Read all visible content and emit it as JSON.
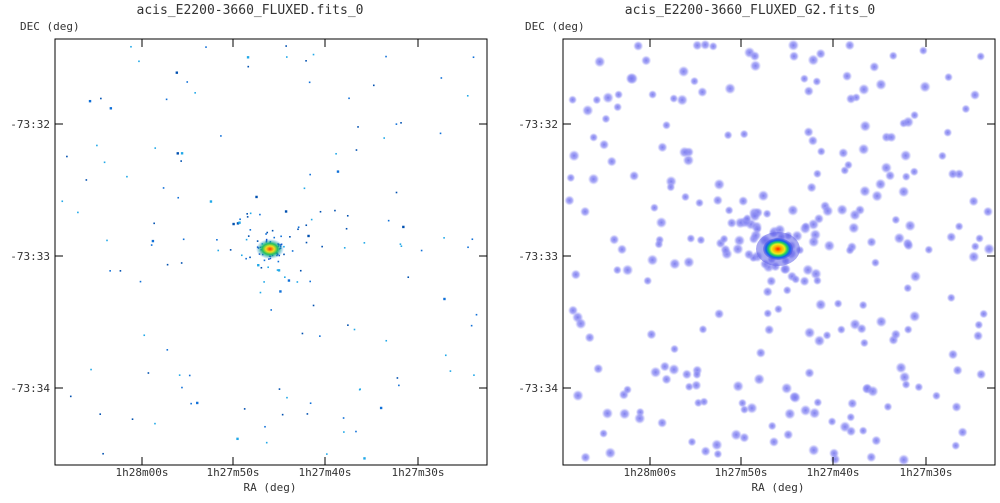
{
  "chart_data": [
    {
      "type": "scatter",
      "title": "acis_E2200-3660_FLUXED.fits_0",
      "xlabel": "RA (deg)",
      "ylabel": "DEC (deg)",
      "x_tick_labels": [
        "1h28m00s",
        "1h27m50s",
        "1h27m40s",
        "1h27m30s"
      ],
      "y_tick_labels": [
        "-73:32",
        "-73:33",
        "-73:34"
      ],
      "rendering": "raw event counts, sparse single-pixel dots",
      "source": {
        "ra": "1h27m47s",
        "dec": "-73:32:56",
        "peak_color": "#ff2000"
      },
      "dot_colors": [
        "#1070d8",
        "#20a8e8",
        "#0050b0"
      ],
      "grid": false
    },
    {
      "type": "scatter",
      "title": "acis_E2200-3660_FLUXED_G2.fits_0",
      "xlabel": "RA (deg)",
      "ylabel": "DEC (deg)",
      "x_tick_labels": [
        "1h28m00s",
        "1h27m50s",
        "1h27m40s",
        "1h27m30s"
      ],
      "y_tick_labels": [
        "-73:32",
        "-73:33",
        "-73:34"
      ],
      "rendering": "gaussian smoothed (sigma 2)",
      "source": {
        "ra": "1h27m47s",
        "dec": "-73:32:56",
        "peak_color": "#ff2000"
      },
      "dot_colors": [
        "#8e8ef4",
        "#6f6fe8"
      ],
      "grid": false
    }
  ]
}
